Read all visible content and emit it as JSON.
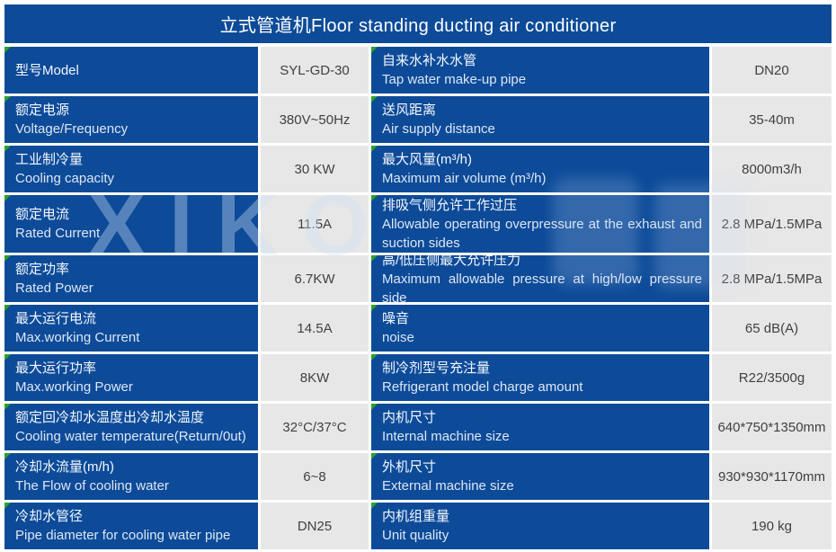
{
  "header": {
    "title": "立式管道机Floor standing ducting air conditioner"
  },
  "watermark": {
    "text": "XIKO"
  },
  "colors": {
    "table_blue": "#0d4b99",
    "value_cell_bg": "#e7e7e7",
    "corner_marker_green": "#2ba12b",
    "value_text": "#404040"
  },
  "rows": [
    {
      "left": {
        "zh": "型号Model",
        "en": ""
      },
      "left_value": "SYL-GD-30",
      "right": {
        "zh": "自来水补水水管",
        "en": "Tap water make-up pipe"
      },
      "right_value": "DN20"
    },
    {
      "left": {
        "zh": "额定电源",
        "en": "Voltage/Frequency"
      },
      "left_value": "380V~50Hz",
      "right": {
        "zh": "送风距离",
        "en": "Air supply distance"
      },
      "right_value": "35-40m"
    },
    {
      "left": {
        "zh": "工业制冷量",
        "en": "Cooling capacity"
      },
      "left_value": "30 KW",
      "right": {
        "zh": "最大风量(m³/h)",
        "en": "Maximum air volume (m³/h)"
      },
      "right_value": "8000m3/h"
    },
    {
      "left": {
        "zh": "额定电流",
        "en": "Rated Current"
      },
      "left_value": "11.5A",
      "right": {
        "zh": "排吸气侧允许工作过压",
        "en": " Allowable operating overpressure at the exhaust and suction sides"
      },
      "right_value": "2.8 MPa/1.5MPa"
    },
    {
      "left": {
        "zh": "额定功率",
        "en": "Rated Power"
      },
      "left_value": "6.7KW",
      "right": {
        "zh": "高/低压侧最大允许压力",
        "en": "Maximum allowable pressure at high/low pressure side"
      },
      "right_value": "2.8 MPa/1.5MPa"
    },
    {
      "left": {
        "zh": "最大运行电流",
        "en": "Max.working Current"
      },
      "left_value": "14.5A",
      "right": {
        "zh": "噪音",
        "en": "noise"
      },
      "right_value": "65 dB(A)"
    },
    {
      "left": {
        "zh": "最大运行功率",
        "en": "Max.working Power"
      },
      "left_value": "8KW",
      "right": {
        "zh": "制冷剂型号充注量",
        "en": "Refrigerant model charge amount"
      },
      "right_value": "R22/3500g"
    },
    {
      "left": {
        "zh": "额定回冷却水温度出冷却水温度",
        "en": "Cooling water temperature(Return/0ut)"
      },
      "left_value": "32°C/37°C",
      "right": {
        "zh": "内机尺寸",
        "en": "Internal machine size"
      },
      "right_value": "640*750*1350mm"
    },
    {
      "left": {
        "zh": "冷却水流量(m/h)",
        "en": "The Flow of cooling water"
      },
      "left_value": "6~8",
      "right": {
        "zh": "外机尺寸",
        "en": "External machine size"
      },
      "right_value": "930*930*1170mm"
    },
    {
      "left": {
        "zh": "冷却水管径",
        "en": "Pipe diameter for cooling water pipe"
      },
      "left_value": "DN25",
      "right": {
        "zh": "内机组重量",
        "en": "Unit quality"
      },
      "right_value": "190 kg"
    }
  ]
}
